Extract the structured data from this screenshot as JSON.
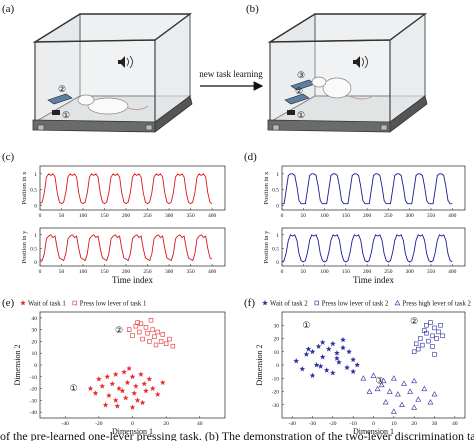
{
  "illustration": {
    "a_label": "(a)",
    "b_label": "(b)",
    "arrow_label": "new task learning",
    "a_markers": [
      "②",
      "①"
    ],
    "b_markers": [
      "③",
      "②",
      "①"
    ]
  },
  "caption": "of the pre-learned one-lever pressing task. (b) The demonstration of the two-lever discrimination task a",
  "chart_data": [
    {
      "type": "line",
      "panel_label": "(c)",
      "ylabel": "Position in x",
      "xlim": [
        0,
        430
      ],
      "xticks": [
        0,
        50,
        100,
        150,
        200,
        250,
        300,
        350,
        400
      ],
      "ylim": [
        -0.15,
        1.25
      ],
      "yticks": [
        0,
        0.5,
        1
      ],
      "x": [
        0,
        5,
        10,
        15,
        20,
        25,
        30,
        35,
        40,
        45,
        50,
        55,
        60,
        65,
        70,
        75,
        80,
        85,
        90,
        95,
        100,
        105,
        110,
        115,
        120,
        125,
        130,
        135,
        140,
        145,
        150,
        155,
        160,
        165,
        170,
        175,
        180,
        185,
        190,
        195,
        200,
        205,
        210,
        215,
        220,
        225,
        230,
        235,
        240,
        245,
        250,
        255,
        260,
        265,
        270,
        275,
        280,
        285,
        290,
        295,
        300,
        305,
        310,
        315,
        320,
        325,
        330,
        335,
        340,
        345,
        350,
        355,
        360,
        365,
        370,
        375,
        380,
        385,
        390,
        395,
        400
      ],
      "series": [
        {
          "color": "#d7191c",
          "values": [
            0.05,
            0.1,
            0.4,
            0.9,
            1,
            0.95,
            1,
            0.9,
            0.4,
            0.1,
            0.05,
            0.1,
            0.4,
            0.9,
            1,
            0.95,
            1,
            0.9,
            0.4,
            0.1,
            0.05,
            0.1,
            0.4,
            0.9,
            1,
            0.95,
            1,
            0.9,
            0.4,
            0.1,
            0.05,
            0.1,
            0.4,
            0.9,
            1,
            0.95,
            1,
            0.9,
            0.4,
            0.1,
            0.05,
            0.1,
            0.4,
            0.9,
            1,
            0.95,
            1,
            0.9,
            0.4,
            0.1,
            0.05,
            0.1,
            0.4,
            0.9,
            1,
            0.95,
            1,
            0.9,
            0.4,
            0.1,
            0.05,
            0.1,
            0.4,
            0.9,
            1,
            0.95,
            1,
            0.9,
            0.4,
            0.1,
            0.05,
            0.1,
            0.4,
            0.9,
            1,
            0.95,
            1,
            0.9,
            0.4,
            0.1,
            0.05
          ]
        }
      ]
    },
    {
      "type": "line",
      "ylabel": "Position in y",
      "xlabel": "Time index",
      "xlim": [
        0,
        430
      ],
      "xticks": [
        0,
        50,
        100,
        150,
        200,
        250,
        300,
        350,
        400
      ],
      "ylim": [
        -0.15,
        1.25
      ],
      "yticks": [
        0,
        0.5,
        1
      ],
      "x": [
        0,
        5,
        10,
        15,
        20,
        25,
        30,
        35,
        40,
        45,
        50,
        55,
        60,
        65,
        70,
        75,
        80,
        85,
        90,
        95,
        100,
        105,
        110,
        115,
        120,
        125,
        130,
        135,
        140,
        145,
        150,
        155,
        160,
        165,
        170,
        175,
        180,
        185,
        190,
        195,
        200,
        205,
        210,
        215,
        220,
        225,
        230,
        235,
        240,
        245,
        250,
        255,
        260,
        265,
        270,
        275,
        280,
        285,
        290,
        295,
        300,
        305,
        310,
        315,
        320,
        325,
        330,
        335,
        340,
        345,
        350,
        355,
        360,
        365,
        370,
        375,
        380,
        385,
        390,
        395,
        400
      ],
      "series": [
        {
          "color": "#d7191c",
          "values": [
            0.1,
            0.05,
            0.3,
            0.85,
            0.95,
            1,
            0.9,
            0.95,
            0.5,
            0.15,
            0.1,
            0.05,
            0.3,
            0.85,
            0.95,
            1,
            0.9,
            0.95,
            0.5,
            0.15,
            0.1,
            0.05,
            0.3,
            0.85,
            0.95,
            1,
            0.9,
            0.95,
            0.5,
            0.15,
            0.1,
            0.05,
            0.3,
            0.85,
            0.95,
            1,
            0.9,
            0.95,
            0.5,
            0.15,
            0.1,
            0.05,
            0.3,
            0.85,
            0.95,
            1,
            0.9,
            0.95,
            0.5,
            0.15,
            0.1,
            0.05,
            0.3,
            0.85,
            0.95,
            1,
            0.9,
            0.95,
            0.5,
            0.15,
            0.1,
            0.05,
            0.3,
            0.85,
            0.95,
            1,
            0.9,
            0.95,
            0.5,
            0.15,
            0.1,
            0.05,
            0.3,
            0.85,
            0.95,
            1,
            0.9,
            0.95,
            0.5,
            0.15,
            0.1
          ]
        }
      ]
    },
    {
      "type": "line",
      "panel_label": "(d)",
      "ylabel": "Position in x",
      "xlim": [
        0,
        430
      ],
      "xticks": [
        0,
        50,
        100,
        150,
        200,
        250,
        300,
        350,
        400
      ],
      "ylim": [
        -0.15,
        1.25
      ],
      "yticks": [
        0,
        0.5,
        1
      ],
      "x": [
        0,
        5,
        10,
        15,
        20,
        25,
        30,
        35,
        40,
        45,
        50,
        55,
        60,
        65,
        70,
        75,
        80,
        85,
        90,
        95,
        100,
        105,
        110,
        115,
        120,
        125,
        130,
        135,
        140,
        145,
        150,
        155,
        160,
        165,
        170,
        175,
        180,
        185,
        190,
        195,
        200,
        205,
        210,
        215,
        220,
        225,
        230,
        235,
        240,
        245,
        250,
        255,
        260,
        265,
        270,
        275,
        280,
        285,
        290,
        295,
        300,
        305,
        310,
        315,
        320,
        325,
        330,
        335,
        340,
        345,
        350,
        355,
        360,
        365,
        370,
        375,
        380,
        385,
        390,
        395,
        400
      ],
      "series": [
        {
          "color": "#1a1a96",
          "values": [
            0.05,
            0.05,
            0.5,
            0.95,
            1,
            1,
            0.95,
            0.6,
            0.15,
            0.05,
            0.05,
            0.05,
            0.5,
            0.95,
            1,
            1,
            0.95,
            0.6,
            0.15,
            0.05,
            0.05,
            0.05,
            0.5,
            0.95,
            1,
            1,
            0.95,
            0.6,
            0.15,
            0.05,
            0.05,
            0.05,
            0.5,
            0.95,
            1,
            1,
            0.95,
            0.6,
            0.15,
            0.05,
            0.05,
            0.05,
            0.5,
            0.95,
            1,
            1,
            0.95,
            0.6,
            0.15,
            0.05,
            0.05,
            0.05,
            0.5,
            0.95,
            1,
            1,
            0.95,
            0.6,
            0.15,
            0.05,
            0.05,
            0.05,
            0.5,
            0.95,
            1,
            1,
            0.95,
            0.6,
            0.15,
            0.05,
            0.05,
            0.05,
            0.5,
            0.95,
            1,
            1,
            0.95,
            0.6,
            0.15,
            0.05,
            0.05
          ]
        }
      ]
    },
    {
      "type": "line",
      "ylabel": "Position in y",
      "xlabel": "Time index",
      "xlim": [
        0,
        430
      ],
      "xticks": [
        0,
        50,
        100,
        150,
        200,
        250,
        300,
        350,
        400
      ],
      "ylim": [
        -0.15,
        1.25
      ],
      "yticks": [
        0,
        0.5,
        1
      ],
      "x": [
        0,
        5,
        10,
        15,
        20,
        25,
        30,
        35,
        40,
        45,
        50,
        55,
        60,
        65,
        70,
        75,
        80,
        85,
        90,
        95,
        100,
        105,
        110,
        115,
        120,
        125,
        130,
        135,
        140,
        145,
        150,
        155,
        160,
        165,
        170,
        175,
        180,
        185,
        190,
        195,
        200,
        205,
        210,
        215,
        220,
        225,
        230,
        235,
        240,
        245,
        250,
        255,
        260,
        265,
        270,
        275,
        280,
        285,
        290,
        295,
        300,
        305,
        310,
        315,
        320,
        325,
        330,
        335,
        340,
        345,
        350,
        355,
        360,
        365,
        370,
        375,
        380,
        385,
        390,
        395,
        400
      ],
      "series": [
        {
          "color": "#1a1a96",
          "values": [
            0,
            0.05,
            0.35,
            0.8,
            1,
            0.95,
            1,
            0.8,
            0.3,
            0.05,
            0,
            0.05,
            0.35,
            0.8,
            1,
            0.95,
            1,
            0.8,
            0.3,
            0.05,
            0,
            0.05,
            0.35,
            0.8,
            1,
            0.95,
            1,
            0.8,
            0.3,
            0.05,
            0,
            0.05,
            0.35,
            0.8,
            1,
            0.95,
            1,
            0.8,
            0.3,
            0.05,
            0,
            0.05,
            0.35,
            0.8,
            1,
            0.95,
            1,
            0.8,
            0.3,
            0.05,
            0,
            0.05,
            0.35,
            0.8,
            1,
            0.95,
            1,
            0.8,
            0.3,
            0.05,
            0,
            0.05,
            0.35,
            0.8,
            1,
            0.95,
            1,
            0.8,
            0.3,
            0.05,
            0,
            0.05,
            0.35,
            0.8,
            1,
            0.95,
            1,
            0.8,
            0.3,
            0.05,
            0
          ]
        }
      ]
    },
    {
      "type": "scatter",
      "panel_label": "(e)",
      "xlabel": "Dimension 1",
      "ylabel": "Dimension 2",
      "xlim": [
        -55,
        55
      ],
      "xticks": [
        -40,
        -20,
        0,
        20,
        40
      ],
      "ylim": [
        -45,
        45
      ],
      "yticks": [
        -40,
        -30,
        -20,
        -10,
        0,
        10,
        20,
        30,
        40
      ],
      "annotations": [
        "②",
        "①"
      ],
      "series": [
        {
          "name": "Wait of task 1",
          "color": "#e8292a",
          "marker": "star",
          "x": [
            -20,
            -15,
            -10,
            -5,
            0,
            5,
            10,
            -18,
            -12,
            -8,
            -3,
            2,
            7,
            12,
            -22,
            -14,
            -6,
            1,
            8,
            15,
            -10,
            -4,
            3,
            -16,
            -9,
            0,
            6,
            18,
            -25,
            -2
          ],
          "values": [
            -12,
            -10,
            -8,
            -6,
            -10,
            -8,
            -12,
            -18,
            -16,
            -20,
            -15,
            -18,
            -16,
            -20,
            -24,
            -26,
            -22,
            -24,
            -22,
            -25,
            -30,
            -28,
            -30,
            -34,
            -35,
            -36,
            -32,
            -15,
            -20,
            -3
          ]
        },
        {
          "name": "Press low lever of task 1",
          "color": "#e8292a",
          "marker": "square",
          "x": [
            -2,
            2,
            5,
            8,
            12,
            15,
            18,
            22,
            0,
            4,
            9,
            13,
            17,
            20,
            24,
            6,
            10,
            14,
            3,
            11
          ],
          "values": [
            30,
            33,
            35,
            32,
            30,
            28,
            26,
            22,
            25,
            28,
            27,
            24,
            20,
            18,
            16,
            22,
            20,
            17,
            36,
            38
          ]
        }
      ]
    },
    {
      "type": "scatter",
      "panel_label": "(f)",
      "xlabel": "Dimension 1",
      "ylabel": "Dimension 2",
      "xlim": [
        -45,
        45
      ],
      "xticks": [
        -40,
        -30,
        -20,
        -10,
        0,
        10,
        20,
        30,
        40
      ],
      "ylim": [
        -40,
        40
      ],
      "yticks": [
        -30,
        -20,
        -10,
        0,
        10,
        20,
        30
      ],
      "annotations": [
        "①",
        "②",
        "③"
      ],
      "series": [
        {
          "name": "Wait of task 2",
          "color": "#2b2b9e",
          "marker": "star",
          "x": [
            -38,
            -33,
            -30,
            -27,
            -25,
            -22,
            -20,
            -18,
            -15,
            -12,
            -10,
            -8,
            -35,
            -28,
            -23,
            -17,
            -13,
            -30,
            -20,
            -25,
            -15,
            -10,
            -32,
            -18,
            -26
          ],
          "values": [
            3,
            8,
            10,
            14,
            6,
            12,
            16,
            9,
            13,
            10,
            4,
            0,
            -3,
            0,
            -4,
            2,
            -2,
            -8,
            -6,
            17,
            19,
            -5,
            12,
            5,
            -1
          ]
        },
        {
          "name": "Press low lever of task 2",
          "color": "#2b2b9e",
          "marker": "square",
          "x": [
            28,
            30,
            32,
            26,
            29,
            31,
            27,
            24,
            22,
            20,
            25,
            33,
            29,
            23,
            30,
            26,
            21,
            34
          ],
          "values": [
            32,
            28,
            25,
            30,
            22,
            20,
            18,
            15,
            12,
            10,
            26,
            30,
            14,
            20,
            8,
            24,
            16,
            22
          ]
        },
        {
          "name": "Press high lever of task 2",
          "color": "#2b2b9e",
          "marker": "triangle",
          "x": [
            -5,
            0,
            5,
            10,
            15,
            20,
            25,
            30,
            2,
            8,
            12,
            18,
            22,
            -2,
            6,
            14,
            20,
            28,
            10,
            4
          ],
          "values": [
            -10,
            -8,
            -12,
            -10,
            -14,
            -12,
            -18,
            -22,
            -18,
            -20,
            -22,
            -20,
            -26,
            -20,
            -28,
            -30,
            -32,
            -28,
            -35,
            -15
          ]
        }
      ]
    }
  ]
}
